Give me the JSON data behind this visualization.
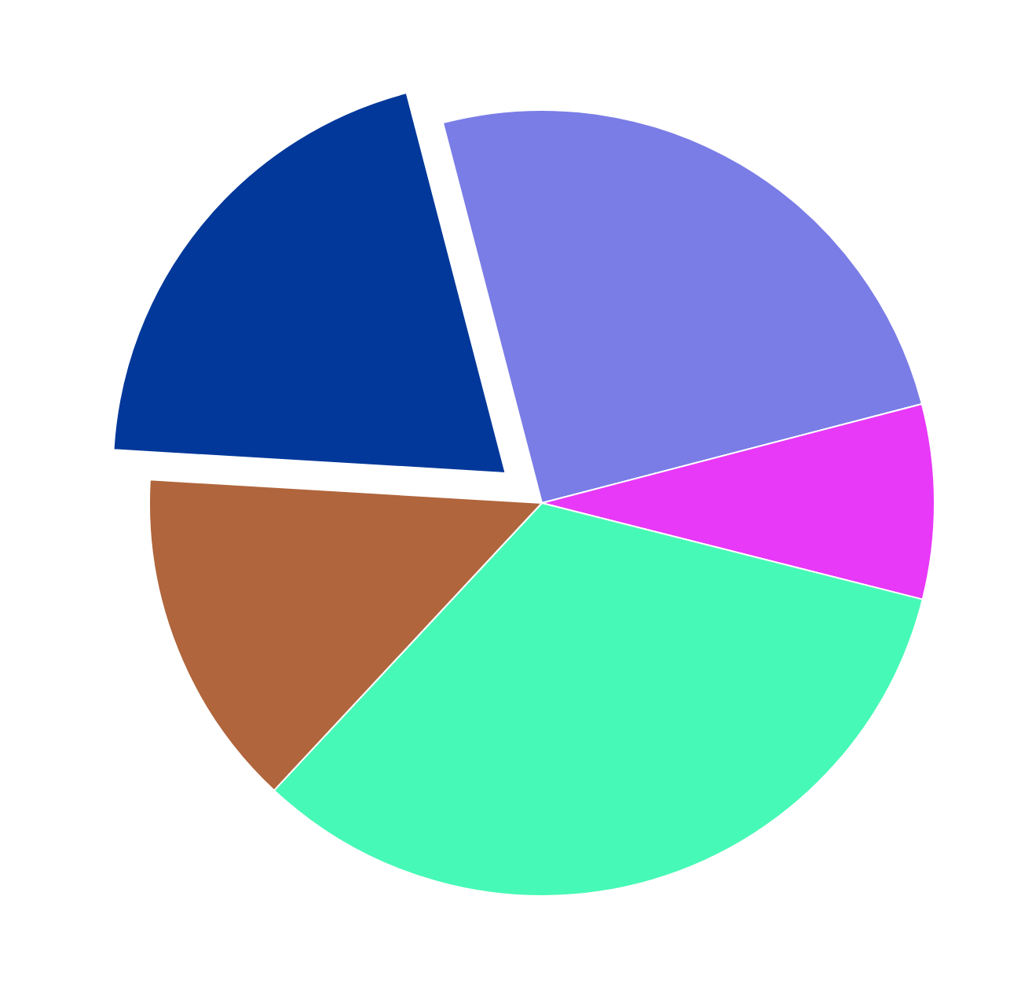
{
  "chart_data": {
    "type": "pie",
    "categories": [
      null,
      null,
      null,
      null,
      null
    ],
    "values": [
      25,
      8,
      33,
      14,
      20
    ],
    "colors": [
      "#7a7de6",
      "#e838f8",
      "#47f9b6",
      "#b0653c",
      "#02389a"
    ]
  }
}
